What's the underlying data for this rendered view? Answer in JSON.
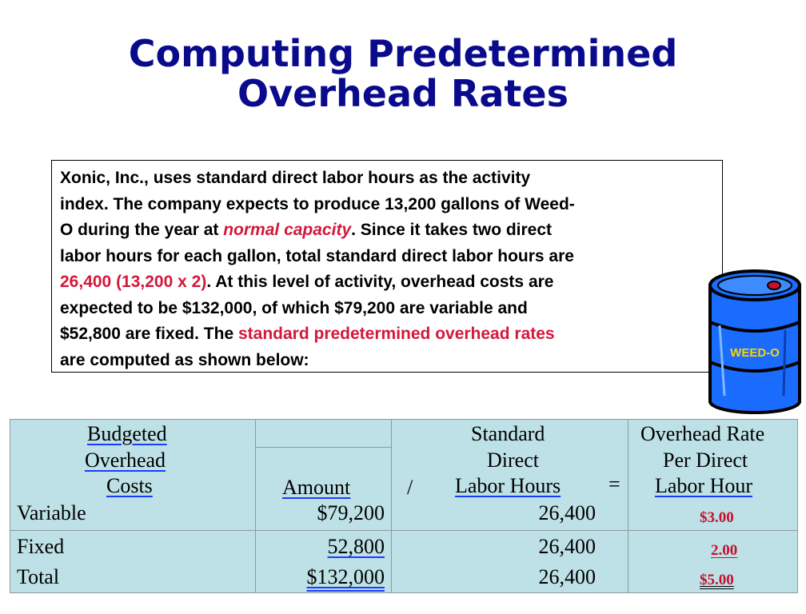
{
  "title": {
    "line1": "Computing Predetermined",
    "line2": "Overhead Rates"
  },
  "intro": {
    "l1": "Xonic, Inc., uses standard direct labor hours as the activity",
    "l2": "index. The company expects to produce 13,200 gallons of Weed-",
    "l3_a": "O during the year at ",
    "l3_red": "normal capacity",
    "l3_b": ". Since it takes two direct",
    "l4": "labor hours for each gallon, total standard direct labor hours are",
    "l5_red": "26,400 (13,200 x 2)",
    "l5_b": ". At this level of activity, overhead costs are",
    "l6": "expected to be $132,000, of which $79,200 are variable and",
    "l7_a": "$52,800 are fixed. The ",
    "l7_red": "standard predetermined overhead rates",
    "l8": "are computed as shown below:"
  },
  "barrel": {
    "label": "WEED-O"
  },
  "table": {
    "headers": {
      "budgeted": [
        "Budgeted",
        "Overhead",
        "Costs"
      ],
      "amount": "Amount",
      "divide": "/",
      "hours": [
        "Standard",
        "Direct",
        "Labor Hours"
      ],
      "equals": "=",
      "rate": [
        "Overhead Rate",
        "Per Direct",
        "Labor Hour"
      ]
    },
    "rows": [
      {
        "label": "Variable",
        "amount": "$79,200",
        "hours": "26,400",
        "rate": "$3.00"
      },
      {
        "label": "Fixed",
        "amount": "52,800",
        "hours": "26,400",
        "rate": "2.00"
      },
      {
        "label": "Total",
        "amount": "$132,000",
        "hours": "26,400",
        "rate": "$5.00"
      }
    ]
  }
}
